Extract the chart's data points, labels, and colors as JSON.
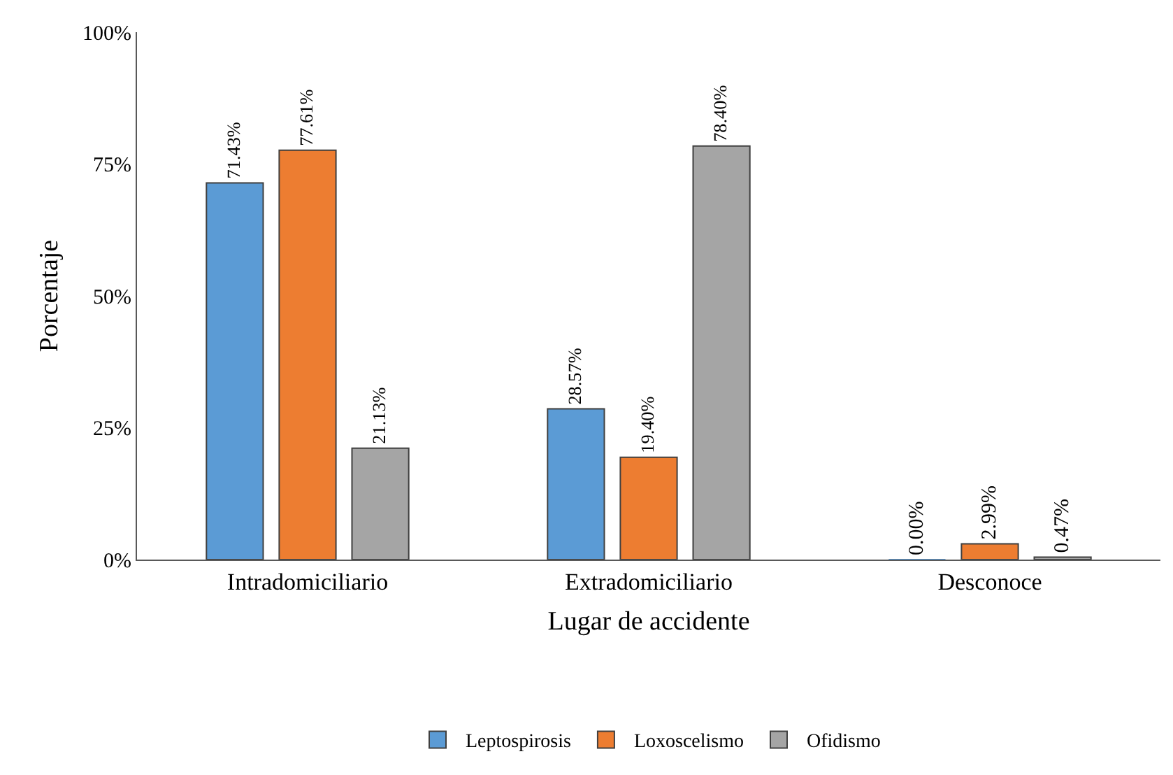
{
  "chart_data": {
    "type": "bar",
    "xlabel": "Lugar de accidente",
    "ylabel": "Porcentaje",
    "categories": [
      "Intradomiciliario",
      "Extradomiciliario",
      "Desconoce"
    ],
    "series": [
      {
        "name": "Leptospirosis",
        "color": "#5b9bd5",
        "values": [
          71.43,
          28.57,
          0
        ],
        "value_labels": [
          "71.43%",
          "28.57%",
          "0.00%"
        ]
      },
      {
        "name": "Loxoscelismo",
        "color": "#ed7d31",
        "values": [
          77.61,
          19.4,
          2.99
        ],
        "value_labels": [
          "77.61%",
          "19.40%",
          "2.99%"
        ]
      },
      {
        "name": "Ofidismo",
        "color": "#a5a5a5",
        "values": [
          21.13,
          78.4,
          0.47
        ],
        "value_labels": [
          "21.13%",
          "78.40%",
          "0.47%"
        ]
      }
    ],
    "ylim": [
      0,
      100
    ],
    "yticks": [
      {
        "value": 0,
        "label": "0%"
      },
      {
        "value": 25,
        "label": "25%"
      },
      {
        "value": 50,
        "label": "50%"
      },
      {
        "value": 75,
        "label": "75%"
      },
      {
        "value": 100,
        "label": "100%"
      }
    ],
    "grid": false,
    "legend": "bottom"
  }
}
